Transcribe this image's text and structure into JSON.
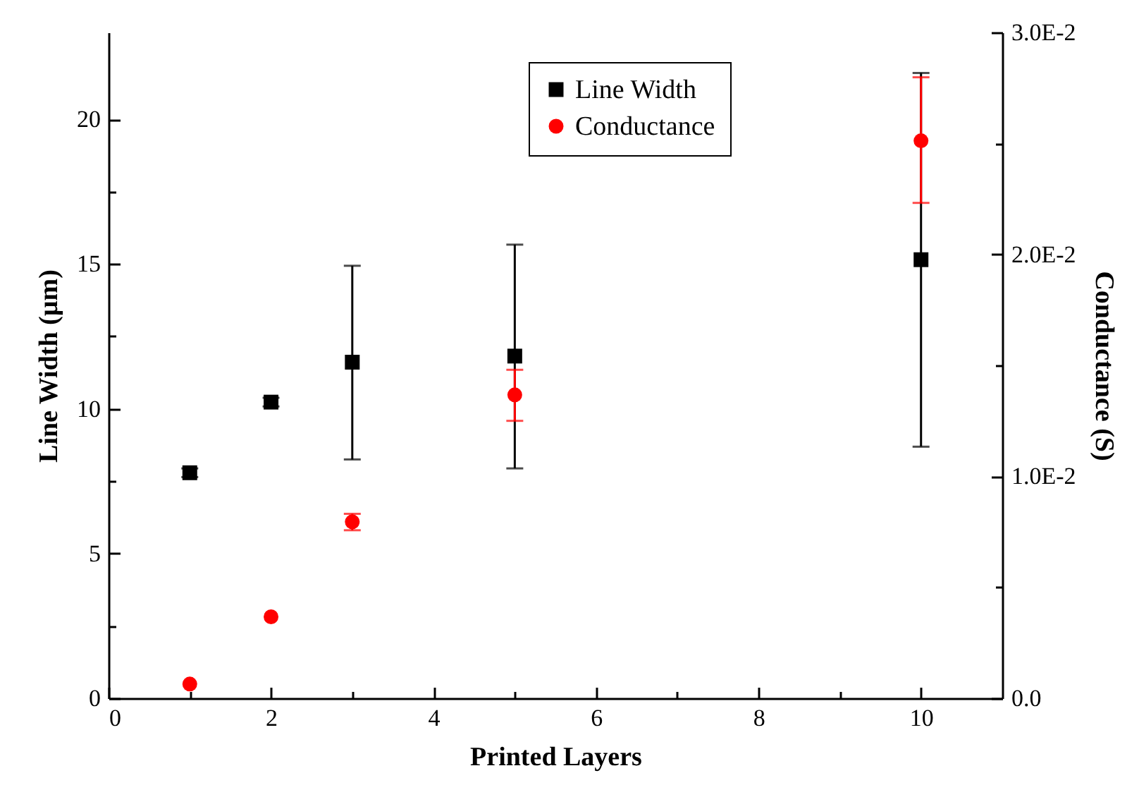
{
  "chart_data": {
    "type": "scatter",
    "xlabel": "Printed Layers",
    "ylabel": "Line Width (µm)",
    "y2label": "Conductance (S)",
    "x": [
      1,
      2,
      3,
      5,
      10
    ],
    "xlim": [
      0,
      11
    ],
    "xticks": [
      0,
      {
        "value": 1,
        "label": null
      },
      2,
      {
        "value": 3,
        "label": null
      },
      4,
      {
        "value": 5,
        "label": null
      },
      6,
      {
        "value": 7,
        "label": null
      },
      8,
      {
        "value": 9,
        "label": null
      },
      10
    ],
    "ylim": [
      0,
      23
    ],
    "yticks": [
      0,
      {
        "value": 2.5,
        "label": null
      },
      5,
      {
        "value": 7.5,
        "label": null
      },
      10,
      {
        "value": 12.5,
        "label": null
      },
      15,
      {
        "value": 17.5,
        "label": null
      },
      20
    ],
    "y2lim": [
      0,
      0.03
    ],
    "y2ticks": [
      {
        "value": 0,
        "label": "0.0"
      },
      {
        "value": 0.005,
        "label": null
      },
      {
        "value": 0.01,
        "label": "1.0E-2"
      },
      {
        "value": 0.015,
        "label": null
      },
      {
        "value": 0.02,
        "label": "2.0E-2"
      },
      {
        "value": 0.025,
        "label": null
      },
      {
        "value": 0.03,
        "label": "3.0E-2"
      }
    ],
    "legend": "top right",
    "series": [
      {
        "name": "Line Width",
        "color": "#000000",
        "marker": "square",
        "values": [
          7.79,
          10.23,
          11.61,
          11.82,
          15.15
        ],
        "errors": [
          [
            7.64,
            7.94
          ],
          [
            10.08,
            10.38
          ],
          [
            8.25,
            14.94
          ],
          [
            7.94,
            15.67
          ],
          [
            8.69,
            21.6
          ]
        ]
      },
      {
        "name": "Conductance",
        "color": "#ff0000",
        "marker": "circle",
        "axis": "y2",
        "values": [
          0.00064,
          0.00367,
          0.00795,
          0.01367,
          0.02512
        ],
        "errors": [
          null,
          null,
          [
            0.00757,
            0.00831
          ],
          [
            0.0125,
            0.0148
          ],
          [
            0.02232,
            0.02798
          ]
        ]
      }
    ]
  }
}
